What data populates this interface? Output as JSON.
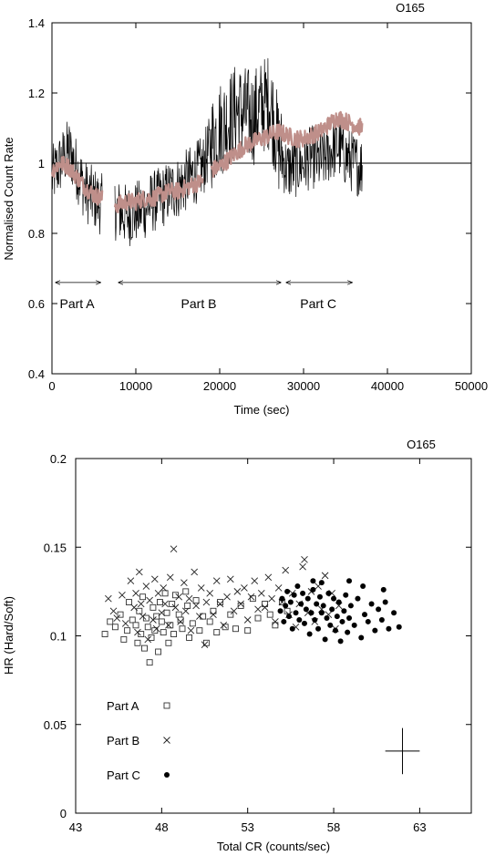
{
  "chart_data": [
    {
      "type": "line",
      "title": "O165",
      "xlabel": "Time (sec)",
      "ylabel": "Normalised Count Rate",
      "xlim": [
        0,
        50000
      ],
      "ylim": [
        0.4,
        1.4
      ],
      "xticks": [
        "0",
        "10000",
        "20000",
        "30000",
        "40000",
        "50000"
      ],
      "yticks": [
        "0.4",
        "0.6",
        "0.8",
        "1",
        "1.2",
        "1.4"
      ],
      "reference_line_y": 1,
      "series": [
        {
          "color": "#000000",
          "segments": [
            {
              "x": [
                0,
                1000,
                2000,
                3000,
                4000,
                5000,
                6000
              ],
              "y": [
                0.96,
                1.0,
                1.04,
                0.98,
                0.92,
                0.9,
                0.88
              ]
            },
            {
              "x": [
                7500,
                9000,
                10000,
                11000,
                12000,
                13000,
                14000,
                15000,
                16000,
                17000,
                18000,
                19000,
                20000,
                21000,
                22000,
                23000,
                24000,
                25000,
                26000,
                27000,
                28000,
                29000,
                30000,
                31000,
                32000,
                33000,
                34000,
                35000,
                36000,
                37000
              ],
              "y": [
                0.87,
                0.85,
                0.86,
                0.87,
                0.89,
                0.9,
                0.92,
                0.93,
                0.95,
                0.97,
                0.99,
                1.06,
                1.1,
                1.12,
                1.15,
                1.14,
                1.13,
                1.16,
                1.18,
                1.05,
                0.98,
                0.99,
                1.0,
                1.02,
                1.0,
                1.03,
                1.05,
                1.02,
                1.0,
                0.99
              ]
            }
          ]
        },
        {
          "color": "#bf8f8a",
          "segments": [
            {
              "x": [
                0,
                1000,
                2000,
                3000,
                4000,
                5000,
                6000
              ],
              "y": [
                0.98,
                1.0,
                0.99,
                0.96,
                0.93,
                0.91,
                0.9
              ]
            },
            {
              "x": [
                7500,
                9000,
                10000,
                11000,
                12000,
                13000,
                14000,
                15000,
                16000,
                17000,
                18000
              ],
              "y": [
                0.88,
                0.89,
                0.89,
                0.9,
                0.9,
                0.91,
                0.92,
                0.92,
                0.93,
                0.94,
                0.95
              ]
            },
            {
              "x": [
                19000,
                20000,
                21000,
                22000,
                23000,
                24000,
                25000,
                26000,
                27000,
                28000,
                29000,
                30000,
                31000,
                32000,
                33000,
                34000,
                35000,
                36000,
                37000
              ],
              "y": [
                0.98,
                0.99,
                1.01,
                1.03,
                1.05,
                1.06,
                1.07,
                1.08,
                1.09,
                1.08,
                1.07,
                1.07,
                1.08,
                1.09,
                1.11,
                1.13,
                1.12,
                1.11,
                1.1
              ]
            }
          ]
        }
      ],
      "annotations": [
        {
          "label": "Part A",
          "x_range": [
            0,
            6000
          ],
          "y": 0.66
        },
        {
          "label": "Part B",
          "x_range": [
            7500,
            27500
          ],
          "y": 0.66
        },
        {
          "label": "Part C",
          "x_range": [
            27500,
            36000
          ],
          "y": 0.66
        }
      ]
    },
    {
      "type": "scatter",
      "title": "O165",
      "xlabel": "Total CR (counts/sec)",
      "ylabel": "HR (Hard/Soft)",
      "xlim": [
        43,
        66
      ],
      "ylim": [
        0,
        0.2
      ],
      "xticks": [
        "43",
        "48",
        "53",
        "58",
        "63"
      ],
      "yticks": [
        "0",
        "0.05",
        "0.1",
        "0.15",
        "0.2"
      ],
      "series": [
        {
          "name": "Part A",
          "marker": "square",
          "points": [
            [
              44.7,
              0.101
            ],
            [
              45.0,
              0.108
            ],
            [
              45.3,
              0.105
            ],
            [
              45.6,
              0.112
            ],
            [
              45.8,
              0.098
            ],
            [
              46.0,
              0.103
            ],
            [
              46.1,
              0.119
            ],
            [
              46.3,
              0.109
            ],
            [
              46.5,
              0.106
            ],
            [
              46.6,
              0.096
            ],
            [
              46.7,
              0.114
            ],
            [
              46.8,
              0.101
            ],
            [
              46.9,
              0.122
            ],
            [
              47.0,
              0.093
            ],
            [
              47.1,
              0.11
            ],
            [
              47.2,
              0.105
            ],
            [
              47.3,
              0.085
            ],
            [
              47.4,
              0.099
            ],
            [
              47.5,
              0.116
            ],
            [
              47.6,
              0.103
            ],
            [
              47.7,
              0.111
            ],
            [
              47.8,
              0.091
            ],
            [
              47.9,
              0.119
            ],
            [
              48.0,
              0.108
            ],
            [
              48.1,
              0.102
            ],
            [
              48.2,
              0.124
            ],
            [
              48.3,
              0.113
            ],
            [
              48.4,
              0.096
            ],
            [
              48.5,
              0.106
            ],
            [
              48.6,
              0.118
            ],
            [
              48.7,
              0.101
            ],
            [
              48.8,
              0.123
            ],
            [
              49.0,
              0.112
            ],
            [
              49.1,
              0.109
            ],
            [
              49.2,
              0.104
            ],
            [
              49.4,
              0.125
            ],
            [
              49.5,
              0.117
            ],
            [
              49.6,
              0.099
            ],
            [
              49.8,
              0.107
            ],
            [
              50.0,
              0.12
            ],
            [
              50.2,
              0.103
            ],
            [
              50.4,
              0.111
            ],
            [
              50.6,
              0.096
            ],
            [
              50.8,
              0.108
            ],
            [
              51.0,
              0.114
            ],
            [
              51.2,
              0.102
            ],
            [
              51.4,
              0.119
            ],
            [
              51.7,
              0.105
            ],
            [
              52.0,
              0.112
            ],
            [
              52.3,
              0.104
            ],
            [
              52.6,
              0.117
            ],
            [
              53.0,
              0.103
            ],
            [
              53.3,
              0.121
            ],
            [
              53.6,
              0.11
            ],
            [
              54.0,
              0.118
            ],
            [
              54.3,
              0.112
            ],
            [
              54.6,
              0.106
            ],
            [
              55.0,
              0.119
            ],
            [
              55.3,
              0.114
            ]
          ]
        },
        {
          "name": "Part B",
          "marker": "cross",
          "points": [
            [
              44.9,
              0.121
            ],
            [
              45.2,
              0.114
            ],
            [
              45.4,
              0.11
            ],
            [
              45.7,
              0.123
            ],
            [
              45.9,
              0.107
            ],
            [
              46.2,
              0.131
            ],
            [
              46.4,
              0.116
            ],
            [
              46.5,
              0.124
            ],
            [
              46.6,
              0.102
            ],
            [
              46.7,
              0.136
            ],
            [
              46.8,
              0.118
            ],
            [
              46.9,
              0.111
            ],
            [
              47.1,
              0.128
            ],
            [
              47.2,
              0.098
            ],
            [
              47.3,
              0.12
            ],
            [
              47.5,
              0.109
            ],
            [
              47.6,
              0.132
            ],
            [
              47.7,
              0.104
            ],
            [
              47.8,
              0.124
            ],
            [
              48.0,
              0.113
            ],
            [
              48.1,
              0.127
            ],
            [
              48.2,
              0.118
            ],
            [
              48.4,
              0.106
            ],
            [
              48.5,
              0.133
            ],
            [
              48.7,
              0.149
            ],
            [
              48.8,
              0.116
            ],
            [
              49.0,
              0.122
            ],
            [
              49.1,
              0.108
            ],
            [
              49.3,
              0.13
            ],
            [
              49.4,
              0.114
            ],
            [
              49.6,
              0.121
            ],
            [
              49.7,
              0.103
            ],
            [
              49.9,
              0.136
            ],
            [
              50.0,
              0.117
            ],
            [
              50.2,
              0.111
            ],
            [
              50.3,
              0.127
            ],
            [
              50.5,
              0.095
            ],
            [
              50.6,
              0.119
            ],
            [
              50.8,
              0.124
            ],
            [
              51.0,
              0.112
            ],
            [
              51.2,
              0.131
            ],
            [
              51.4,
              0.118
            ],
            [
              51.6,
              0.106
            ],
            [
              51.8,
              0.122
            ],
            [
              52.0,
              0.132
            ],
            [
              52.2,
              0.114
            ],
            [
              52.4,
              0.125
            ],
            [
              52.6,
              0.118
            ],
            [
              52.8,
              0.127
            ],
            [
              53.0,
              0.109
            ],
            [
              53.2,
              0.122
            ],
            [
              53.4,
              0.131
            ],
            [
              53.6,
              0.115
            ],
            [
              53.8,
              0.124
            ],
            [
              54.0,
              0.116
            ],
            [
              54.2,
              0.133
            ],
            [
              54.4,
              0.121
            ],
            [
              54.6,
              0.108
            ],
            [
              54.8,
              0.127
            ],
            [
              55.0,
              0.119
            ],
            [
              55.2,
              0.137
            ],
            [
              55.4,
              0.112
            ],
            [
              55.6,
              0.124
            ],
            [
              55.8,
              0.105
            ],
            [
              56.0,
              0.118
            ],
            [
              56.2,
              0.139
            ],
            [
              56.3,
              0.143
            ],
            [
              56.5,
              0.113
            ],
            [
              56.7,
              0.125
            ],
            [
              56.9,
              0.108
            ],
            [
              57.1,
              0.128
            ],
            [
              57.3,
              0.115
            ],
            [
              57.5,
              0.134
            ],
            [
              57.7,
              0.112
            ],
            [
              57.9,
              0.124
            ],
            [
              58.1,
              0.104
            ],
            [
              58.3,
              0.117
            ]
          ]
        },
        {
          "name": "Part C",
          "marker": "filled-circle",
          "points": [
            [
              54.9,
              0.114
            ],
            [
              55.0,
              0.121
            ],
            [
              55.1,
              0.108
            ],
            [
              55.2,
              0.117
            ],
            [
              55.3,
              0.125
            ],
            [
              55.4,
              0.111
            ],
            [
              55.5,
              0.119
            ],
            [
              55.6,
              0.104
            ],
            [
              55.7,
              0.123
            ],
            [
              55.8,
              0.113
            ],
            [
              55.9,
              0.128
            ],
            [
              56.0,
              0.109
            ],
            [
              56.1,
              0.118
            ],
            [
              56.2,
              0.124
            ],
            [
              56.3,
              0.107
            ],
            [
              56.4,
              0.115
            ],
            [
              56.5,
              0.121
            ],
            [
              56.6,
              0.101
            ],
            [
              56.7,
              0.113
            ],
            [
              56.8,
              0.126
            ],
            [
              56.9,
              0.109
            ],
            [
              57.0,
              0.118
            ],
            [
              57.1,
              0.104
            ],
            [
              57.2,
              0.122
            ],
            [
              57.3,
              0.113
            ],
            [
              57.4,
              0.117
            ],
            [
              57.5,
              0.098
            ],
            [
              57.6,
              0.11
            ],
            [
              57.7,
              0.124
            ],
            [
              57.8,
              0.106
            ],
            [
              57.9,
              0.115
            ],
            [
              58.0,
              0.121
            ],
            [
              58.1,
              0.103
            ],
            [
              58.2,
              0.111
            ],
            [
              58.3,
              0.119
            ],
            [
              58.4,
              0.097
            ],
            [
              58.5,
              0.108
            ],
            [
              58.6,
              0.114
            ],
            [
              58.7,
              0.123
            ],
            [
              58.8,
              0.102
            ],
            [
              58.9,
              0.11
            ],
            [
              59.0,
              0.117
            ],
            [
              59.2,
              0.106
            ],
            [
              59.4,
              0.121
            ],
            [
              59.6,
              0.099
            ],
            [
              59.8,
              0.112
            ],
            [
              60.0,
              0.108
            ],
            [
              60.2,
              0.118
            ],
            [
              60.4,
              0.103
            ],
            [
              60.6,
              0.115
            ],
            [
              60.8,
              0.109
            ],
            [
              61.0,
              0.119
            ],
            [
              61.2,
              0.104
            ],
            [
              61.5,
              0.113
            ],
            [
              61.8,
              0.105
            ],
            [
              57.3,
              0.13
            ],
            [
              56.8,
              0.131
            ],
            [
              58.9,
              0.131
            ],
            [
              59.7,
              0.128
            ],
            [
              60.9,
              0.126
            ]
          ]
        }
      ],
      "error_cross": {
        "x": 62.0,
        "y": 0.035,
        "dx": 1.0,
        "dy": 0.013
      }
    }
  ]
}
